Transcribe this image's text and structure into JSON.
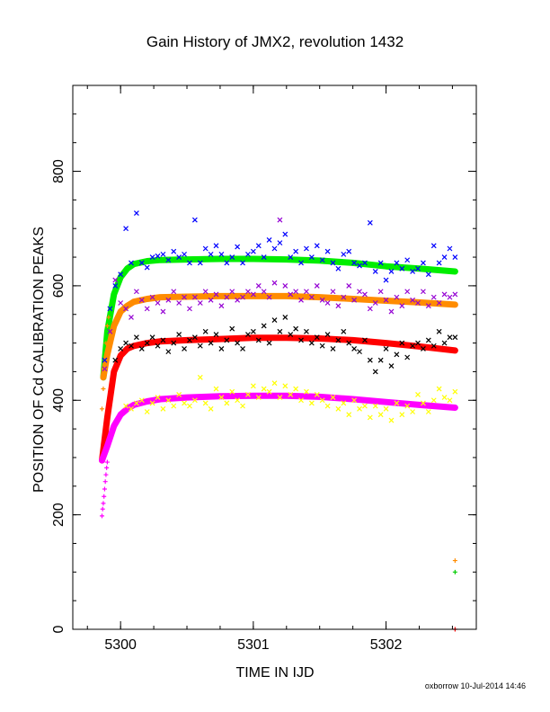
{
  "chart_data": {
    "type": "scatter",
    "title": "Gain History of JMX2, revolution 1432",
    "xlabel": "TIME IN IJD",
    "ylabel": "POSITION OF Cd CALIBRATION PEAKS",
    "xlim": [
      5299.64,
      5302.68
    ],
    "ylim": [
      0,
      950
    ],
    "x_ticks": [
      5300,
      5301,
      5302
    ],
    "y_ticks": [
      0,
      200,
      400,
      600,
      800
    ],
    "grid": false,
    "series": [
      {
        "color": "#0000ff",
        "marker": "x",
        "x": [
          5299.88,
          5299.92,
          5299.96,
          5300.0,
          5300.04,
          5300.08,
          5300.12,
          5300.16,
          5300.2,
          5300.24,
          5300.28,
          5300.32,
          5300.36,
          5300.4,
          5300.44,
          5300.48,
          5300.52,
          5300.56,
          5300.6,
          5300.64,
          5300.68,
          5300.72,
          5300.76,
          5300.8,
          5300.84,
          5300.88,
          5300.92,
          5300.96,
          5301.0,
          5301.04,
          5301.08,
          5301.12,
          5301.16,
          5301.2,
          5301.24,
          5301.28,
          5301.32,
          5301.36,
          5301.4,
          5301.44,
          5301.48,
          5301.52,
          5301.56,
          5301.6,
          5301.64,
          5301.68,
          5301.72,
          5301.76,
          5301.8,
          5301.84,
          5301.88,
          5301.92,
          5301.96,
          5302.0,
          5302.04,
          5302.08,
          5302.12,
          5302.16,
          5302.2,
          5302.24,
          5302.28,
          5302.32,
          5302.36,
          5302.4,
          5302.44,
          5302.48,
          5302.52
        ],
        "y": [
          470,
          560,
          600,
          620,
          700,
          640,
          727,
          640,
          632,
          650,
          652,
          655,
          645,
          660,
          650,
          655,
          640,
          715,
          640,
          665,
          655,
          670,
          655,
          640,
          650,
          668,
          640,
          655,
          660,
          670,
          650,
          680,
          665,
          675,
          690,
          650,
          660,
          640,
          665,
          650,
          670,
          645,
          660,
          640,
          630,
          655,
          660,
          640,
          635,
          640,
          710,
          625,
          640,
          610,
          625,
          640,
          630,
          645,
          625,
          630,
          640,
          620,
          670,
          640,
          650,
          665,
          650
        ]
      },
      {
        "color": "#9400d3",
        "marker": "x",
        "x": [
          5299.88,
          5299.92,
          5299.96,
          5300.0,
          5300.04,
          5300.08,
          5300.12,
          5300.16,
          5300.2,
          5300.24,
          5300.28,
          5300.32,
          5300.36,
          5300.4,
          5300.44,
          5300.48,
          5300.52,
          5300.56,
          5300.6,
          5300.64,
          5300.68,
          5300.72,
          5300.76,
          5300.8,
          5300.84,
          5300.88,
          5300.92,
          5300.96,
          5301.0,
          5301.04,
          5301.08,
          5301.12,
          5301.16,
          5301.2,
          5301.24,
          5301.28,
          5301.32,
          5301.36,
          5301.4,
          5301.44,
          5301.48,
          5301.52,
          5301.56,
          5301.6,
          5301.64,
          5301.68,
          5301.72,
          5301.76,
          5301.8,
          5301.84,
          5301.88,
          5301.92,
          5301.96,
          5302.0,
          5302.04,
          5302.08,
          5302.12,
          5302.16,
          5302.2,
          5302.24,
          5302.28,
          5302.32,
          5302.36,
          5302.4,
          5302.44,
          5302.48,
          5302.52
        ],
        "y": [
          455,
          520,
          610,
          570,
          560,
          545,
          590,
          575,
          560,
          580,
          570,
          555,
          575,
          590,
          570,
          580,
          560,
          580,
          570,
          590,
          575,
          585,
          565,
          580,
          590,
          575,
          580,
          590,
          585,
          600,
          590,
          580,
          605,
          715,
          600,
          585,
          590,
          575,
          590,
          580,
          600,
          575,
          570,
          590,
          565,
          580,
          600,
          575,
          590,
          585,
          560,
          570,
          590,
          575,
          555,
          580,
          565,
          590,
          575,
          570,
          590,
          565,
          580,
          570,
          585,
          580,
          585
        ]
      },
      {
        "color": "#000000",
        "marker": "x",
        "x": [
          5299.96,
          5300.0,
          5300.04,
          5300.08,
          5300.12,
          5300.16,
          5300.2,
          5300.24,
          5300.28,
          5300.32,
          5300.36,
          5300.4,
          5300.44,
          5300.48,
          5300.52,
          5300.56,
          5300.6,
          5300.64,
          5300.68,
          5300.72,
          5300.76,
          5300.8,
          5300.84,
          5300.88,
          5300.92,
          5300.96,
          5301.0,
          5301.04,
          5301.08,
          5301.12,
          5301.16,
          5301.2,
          5301.24,
          5301.28,
          5301.32,
          5301.36,
          5301.4,
          5301.44,
          5301.48,
          5301.52,
          5301.56,
          5301.6,
          5301.64,
          5301.68,
          5301.72,
          5301.76,
          5301.8,
          5301.84,
          5301.88,
          5301.92,
          5301.96,
          5302.0,
          5302.04,
          5302.08,
          5302.12,
          5302.16,
          5302.2,
          5302.24,
          5302.28,
          5302.32,
          5302.36,
          5302.4,
          5302.44,
          5302.48,
          5302.52
        ],
        "y": [
          470,
          490,
          500,
          495,
          510,
          490,
          500,
          510,
          495,
          505,
          485,
          500,
          515,
          490,
          505,
          510,
          495,
          520,
          500,
          515,
          490,
          505,
          525,
          500,
          490,
          515,
          520,
          505,
          530,
          500,
          540,
          520,
          545,
          515,
          525,
          505,
          520,
          500,
          510,
          495,
          515,
          490,
          505,
          520,
          500,
          490,
          485,
          505,
          470,
          450,
          470,
          490,
          460,
          480,
          500,
          475,
          495,
          500,
          490,
          505,
          495,
          520,
          500,
          510,
          510
        ]
      },
      {
        "color": "#ffff00",
        "marker": "x",
        "x": [
          5300.04,
          5300.08,
          5300.12,
          5300.16,
          5300.2,
          5300.24,
          5300.28,
          5300.32,
          5300.36,
          5300.4,
          5300.44,
          5300.48,
          5300.52,
          5300.56,
          5300.6,
          5300.64,
          5300.68,
          5300.72,
          5300.76,
          5300.8,
          5300.84,
          5300.88,
          5300.92,
          5300.96,
          5301.0,
          5301.04,
          5301.08,
          5301.12,
          5301.16,
          5301.2,
          5301.24,
          5301.28,
          5301.32,
          5301.36,
          5301.4,
          5301.44,
          5301.48,
          5301.52,
          5301.56,
          5301.6,
          5301.64,
          5301.68,
          5301.72,
          5301.76,
          5301.8,
          5301.84,
          5301.88,
          5301.92,
          5301.96,
          5302.0,
          5302.04,
          5302.08,
          5302.12,
          5302.16,
          5302.2,
          5302.24,
          5302.28,
          5302.32,
          5302.36,
          5302.4,
          5302.44,
          5302.48,
          5302.52
        ],
        "y": [
          390,
          385,
          395,
          400,
          380,
          395,
          405,
          385,
          400,
          390,
          410,
          395,
          390,
          400,
          440,
          395,
          385,
          420,
          405,
          395,
          415,
          400,
          390,
          410,
          425,
          405,
          420,
          415,
          430,
          405,
          425,
          410,
          420,
          400,
          415,
          395,
          410,
          400,
          390,
          405,
          385,
          395,
          375,
          400,
          385,
          390,
          370,
          390,
          375,
          385,
          365,
          395,
          375,
          390,
          380,
          410,
          395,
          380,
          400,
          420,
          405,
          400,
          415
        ]
      },
      {
        "color": "#ff8c00",
        "marker": "+",
        "x": [
          5299.86,
          5299.87,
          5299.88,
          5299.89,
          5299.9,
          5299.91,
          5302.52
        ],
        "y": [
          385,
          420,
          460,
          500,
          530,
          545,
          120
        ]
      },
      {
        "color": "#00cc00",
        "marker": "+",
        "x": [
          5302.52
        ],
        "y": [
          100
        ]
      },
      {
        "color": "#ff00ff",
        "marker": "+",
        "x": [
          5299.86,
          5299.865,
          5299.87,
          5299.875,
          5299.88,
          5299.885,
          5299.89,
          5299.895,
          5299.9
        ],
        "y": [
          198,
          210,
          220,
          232,
          245,
          258,
          270,
          282,
          292
        ]
      },
      {
        "color": "#ff0000",
        "marker": "+",
        "x": [
          5302.52
        ],
        "y": [
          0
        ]
      }
    ],
    "fits": [
      {
        "color": "#00ee00",
        "x": [
          5299.87,
          5299.9,
          5299.95,
          5300.0,
          5300.05,
          5300.1,
          5300.2,
          5300.3,
          5300.5,
          5300.75,
          5301.0,
          5301.25,
          5301.5,
          5301.75,
          5302.0,
          5302.25,
          5302.52
        ],
        "y": [
          440,
          520,
          585,
          615,
          630,
          638,
          643,
          645,
          646,
          647,
          647,
          646,
          644,
          640,
          634,
          630,
          625
        ]
      },
      {
        "color": "#ff8c00",
        "x": [
          5299.87,
          5299.9,
          5299.95,
          5300.0,
          5300.05,
          5300.1,
          5300.2,
          5300.3,
          5300.5,
          5300.75,
          5301.0,
          5301.25,
          5301.5,
          5301.75,
          5302.0,
          5302.25,
          5302.52
        ],
        "y": [
          440,
          480,
          530,
          555,
          565,
          572,
          577,
          580,
          581,
          582,
          582,
          582,
          580,
          577,
          574,
          571,
          567
        ]
      },
      {
        "color": "#ff0000",
        "x": [
          5299.86,
          5299.9,
          5299.95,
          5300.0,
          5300.05,
          5300.1,
          5300.2,
          5300.3,
          5300.5,
          5300.75,
          5301.0,
          5301.25,
          5301.5,
          5301.75,
          5302.0,
          5302.25,
          5302.52
        ],
        "y": [
          295,
          370,
          450,
          478,
          490,
          495,
          500,
          503,
          505,
          507,
          509,
          509,
          508,
          505,
          500,
          494,
          487
        ]
      },
      {
        "color": "#ff00ff",
        "x": [
          5299.86,
          5299.9,
          5299.95,
          5300.0,
          5300.05,
          5300.1,
          5300.2,
          5300.3,
          5300.5,
          5300.75,
          5301.0,
          5301.25,
          5301.5,
          5301.75,
          5302.0,
          5302.25,
          5302.52
        ],
        "y": [
          295,
          320,
          355,
          375,
          385,
          392,
          398,
          402,
          405,
          407,
          408,
          408,
          406,
          402,
          397,
          392,
          387
        ]
      }
    ],
    "footer": "oxborrow 10-Jul-2014 14:46"
  }
}
